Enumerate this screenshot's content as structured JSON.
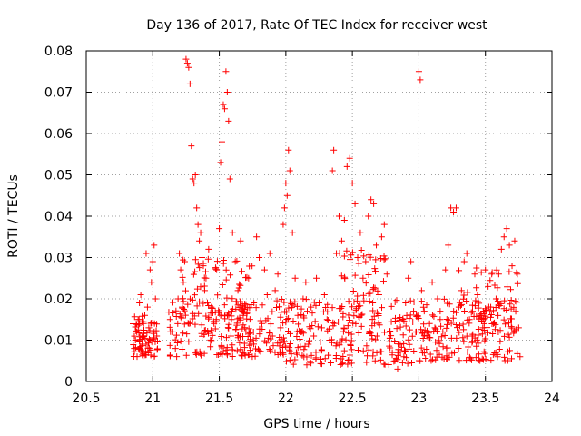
{
  "chart_data": {
    "type": "scatter",
    "title": "Day 136 of 2017, Rate Of TEC Index for receiver west",
    "xlabel": "GPS time / hours",
    "ylabel": "ROTI / TECUs",
    "xlim": [
      20.5,
      24
    ],
    "ylim": [
      0,
      0.08
    ],
    "xticks": [
      20.5,
      21,
      21.5,
      22,
      22.5,
      23,
      23.5,
      24
    ],
    "xtick_labels": [
      "20.5",
      "21",
      "21.5",
      "22",
      "22.5",
      "23",
      "23.5",
      "24"
    ],
    "yticks": [
      0,
      0.01,
      0.02,
      0.03,
      0.04,
      0.05,
      0.06,
      0.07,
      0.08
    ],
    "ytick_labels": [
      "0",
      "0.01",
      "0.02",
      "0.03",
      "0.04",
      "0.05",
      "0.06",
      "0.07",
      "0.08"
    ],
    "grid": true,
    "marker": "+",
    "color": "#ff0000",
    "series": [
      {
        "name": "ROTI",
        "points": [
          [
            20.86,
            0.008
          ],
          [
            20.87,
            0.01
          ],
          [
            20.88,
            0.012
          ],
          [
            20.89,
            0.015
          ],
          [
            20.9,
            0.019
          ],
          [
            20.91,
            0.021
          ],
          [
            20.92,
            0.009
          ],
          [
            20.93,
            0.011
          ],
          [
            20.94,
            0.016
          ],
          [
            20.95,
            0.031
          ],
          [
            20.96,
            0.018
          ],
          [
            20.97,
            0.013
          ],
          [
            20.98,
            0.027
          ],
          [
            20.99,
            0.024
          ],
          [
            21.0,
            0.029
          ],
          [
            21.01,
            0.033
          ],
          [
            21.02,
            0.02
          ],
          [
            21.03,
            0.011
          ],
          [
            20.9,
            0.008
          ],
          [
            20.95,
            0.009
          ],
          [
            20.98,
            0.01
          ],
          [
            21.01,
            0.012
          ],
          [
            21.13,
            0.015
          ],
          [
            21.15,
            0.012
          ],
          [
            21.17,
            0.008
          ],
          [
            21.19,
            0.02
          ],
          [
            21.2,
            0.031
          ],
          [
            21.21,
            0.027
          ],
          [
            21.22,
            0.018
          ],
          [
            21.23,
            0.024
          ],
          [
            21.24,
            0.029
          ],
          [
            21.25,
            0.078
          ],
          [
            21.26,
            0.077
          ],
          [
            21.27,
            0.076
          ],
          [
            21.28,
            0.072
          ],
          [
            21.29,
            0.057
          ],
          [
            21.3,
            0.049
          ],
          [
            21.31,
            0.048
          ],
          [
            21.32,
            0.05
          ],
          [
            21.33,
            0.042
          ],
          [
            21.34,
            0.038
          ],
          [
            21.35,
            0.034
          ],
          [
            21.36,
            0.036
          ],
          [
            21.37,
            0.03
          ],
          [
            21.38,
            0.028
          ],
          [
            21.39,
            0.022
          ],
          [
            21.4,
            0.025
          ],
          [
            21.42,
            0.032
          ],
          [
            21.44,
            0.018
          ],
          [
            21.46,
            0.014
          ],
          [
            21.48,
            0.027
          ],
          [
            21.5,
            0.037
          ],
          [
            21.51,
            0.053
          ],
          [
            21.52,
            0.058
          ],
          [
            21.53,
            0.067
          ],
          [
            21.54,
            0.066
          ],
          [
            21.55,
            0.075
          ],
          [
            21.56,
            0.07
          ],
          [
            21.57,
            0.063
          ],
          [
            21.58,
            0.049
          ],
          [
            21.6,
            0.036
          ],
          [
            21.62,
            0.029
          ],
          [
            21.64,
            0.022
          ],
          [
            21.66,
            0.034
          ],
          [
            21.68,
            0.016
          ],
          [
            21.7,
            0.012
          ],
          [
            21.72,
            0.025
          ],
          [
            21.74,
            0.009
          ],
          [
            21.76,
            0.019
          ],
          [
            21.78,
            0.035
          ],
          [
            21.8,
            0.03
          ],
          [
            21.82,
            0.014
          ],
          [
            21.84,
            0.027
          ],
          [
            21.86,
            0.021
          ],
          [
            21.88,
            0.031
          ],
          [
            21.9,
            0.011
          ],
          [
            21.92,
            0.022
          ],
          [
            21.94,
            0.026
          ],
          [
            21.96,
            0.013
          ],
          [
            21.98,
            0.038
          ],
          [
            21.99,
            0.042
          ],
          [
            22.0,
            0.048
          ],
          [
            22.01,
            0.045
          ],
          [
            22.02,
            0.056
          ],
          [
            22.03,
            0.051
          ],
          [
            22.05,
            0.036
          ],
          [
            22.07,
            0.025
          ],
          [
            22.09,
            0.016
          ],
          [
            22.11,
            0.012
          ],
          [
            22.13,
            0.02
          ],
          [
            22.15,
            0.024
          ],
          [
            22.17,
            0.009
          ],
          [
            22.19,
            0.018
          ],
          [
            22.21,
            0.011
          ],
          [
            22.23,
            0.025
          ],
          [
            22.25,
            0.019
          ],
          [
            22.27,
            0.013
          ],
          [
            22.29,
            0.021
          ],
          [
            22.31,
            0.015
          ],
          [
            22.33,
            0.01
          ],
          [
            22.35,
            0.051
          ],
          [
            22.36,
            0.056
          ],
          [
            22.38,
            0.031
          ],
          [
            22.4,
            0.04
          ],
          [
            22.42,
            0.034
          ],
          [
            22.44,
            0.039
          ],
          [
            22.46,
            0.052
          ],
          [
            22.48,
            0.054
          ],
          [
            22.5,
            0.048
          ],
          [
            22.52,
            0.043
          ],
          [
            22.54,
            0.03
          ],
          [
            22.56,
            0.036
          ],
          [
            22.58,
            0.025
          ],
          [
            22.6,
            0.029
          ],
          [
            22.62,
            0.04
          ],
          [
            22.64,
            0.044
          ],
          [
            22.66,
            0.043
          ],
          [
            22.68,
            0.033
          ],
          [
            22.7,
            0.021
          ],
          [
            22.72,
            0.035
          ],
          [
            22.74,
            0.038
          ],
          [
            22.76,
            0.026
          ],
          [
            22.78,
            0.012
          ],
          [
            22.8,
            0.007
          ],
          [
            22.82,
            0.005
          ],
          [
            22.84,
            0.003
          ],
          [
            22.86,
            0.009
          ],
          [
            22.88,
            0.015
          ],
          [
            22.9,
            0.019
          ],
          [
            22.92,
            0.025
          ],
          [
            22.94,
            0.029
          ],
          [
            22.96,
            0.017
          ],
          [
            22.98,
            0.012
          ],
          [
            23.0,
            0.075
          ],
          [
            23.01,
            0.073
          ],
          [
            23.02,
            0.022
          ],
          [
            23.04,
            0.017
          ],
          [
            23.06,
            0.011
          ],
          [
            23.08,
            0.014
          ],
          [
            23.1,
            0.024
          ],
          [
            23.12,
            0.013
          ],
          [
            23.14,
            0.02
          ],
          [
            23.16,
            0.017
          ],
          [
            23.18,
            0.012
          ],
          [
            23.2,
            0.027
          ],
          [
            23.22,
            0.033
          ],
          [
            23.24,
            0.042
          ],
          [
            23.26,
            0.041
          ],
          [
            23.28,
            0.042
          ],
          [
            23.3,
            0.018
          ],
          [
            23.32,
            0.022
          ],
          [
            23.34,
            0.029
          ],
          [
            23.36,
            0.031
          ],
          [
            23.38,
            0.015
          ],
          [
            23.4,
            0.011
          ],
          [
            23.42,
            0.026
          ],
          [
            23.44,
            0.021
          ],
          [
            23.46,
            0.016
          ],
          [
            23.48,
            0.013
          ],
          [
            23.5,
            0.027
          ],
          [
            23.52,
            0.023
          ],
          [
            23.54,
            0.018
          ],
          [
            23.56,
            0.014
          ],
          [
            23.58,
            0.02
          ],
          [
            23.6,
            0.026
          ],
          [
            23.62,
            0.032
          ],
          [
            23.64,
            0.035
          ],
          [
            23.66,
            0.037
          ],
          [
            23.68,
            0.033
          ],
          [
            23.7,
            0.028
          ],
          [
            23.72,
            0.034
          ],
          [
            23.74,
            0.026
          ],
          [
            23.75,
            0.013
          ],
          [
            23.76,
            0.006
          ]
        ],
        "clusters": [
          {
            "x": [
              20.85,
              21.04
            ],
            "y": [
              0.006,
              0.016
            ],
            "n": 70
          },
          {
            "x": [
              21.12,
              22.0
            ],
            "y": [
              0.006,
              0.02
            ],
            "n": 200
          },
          {
            "x": [
              21.2,
              21.75
            ],
            "y": [
              0.015,
              0.03
            ],
            "n": 70
          },
          {
            "x": [
              22.0,
              23.0
            ],
            "y": [
              0.004,
              0.02
            ],
            "n": 220
          },
          {
            "x": [
              22.4,
              22.75
            ],
            "y": [
              0.015,
              0.032
            ],
            "n": 50
          },
          {
            "x": [
              23.0,
              23.76
            ],
            "y": [
              0.005,
              0.02
            ],
            "n": 170
          },
          {
            "x": [
              23.3,
              23.76
            ],
            "y": [
              0.015,
              0.028
            ],
            "n": 40
          }
        ]
      }
    ]
  }
}
